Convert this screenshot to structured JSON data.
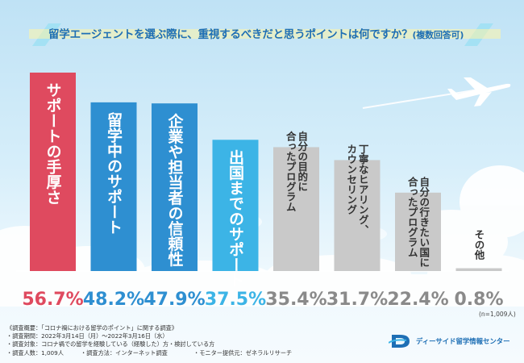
{
  "title": {
    "main": "留学エージェントを選ぶ際に、重視するべきだと思うポイントは何ですか？",
    "sub": "(複数回答可)"
  },
  "chart_data": {
    "type": "bar",
    "unit": "%",
    "ylim": [
      0,
      60
    ],
    "categories": [
      "サポートの手厚さ",
      "留学中のサポート",
      "企業や担当者の信頼性",
      "出国までのサポート",
      "自分の目的に合ったプログラム",
      "丁寧なヒアリング、カウンセリング",
      "自分の行きたい国に合ったプログラム",
      "その他"
    ],
    "label_lines": [
      [
        "サポートの手厚さ"
      ],
      [
        "留学中のサポート"
      ],
      [
        "企業や担当者の信頼性"
      ],
      [
        "出国までのサポート"
      ],
      [
        "自分の目的に",
        "合ったプログラム"
      ],
      [
        "丁寧なヒアリング、",
        "カウンセリング"
      ],
      [
        "自分の行きたい国に",
        "合ったプログラム"
      ],
      [
        "その他"
      ]
    ],
    "values": [
      56.7,
      48.2,
      47.9,
      37.5,
      35.4,
      31.7,
      22.4,
      0.8
    ],
    "value_labels": [
      "56.7%",
      "48.2%",
      "47.9%",
      "37.5%",
      "35.4%",
      "31.7%",
      "22.4%",
      "0.8%"
    ],
    "colors": [
      "#df4a5f",
      "#2e8fd1",
      "#2e8fd1",
      "#3cb4e6",
      "#c9c9c9",
      "#c9c9c9",
      "#c9c9c9",
      "#c9c9c9"
    ],
    "label_colors": [
      "#ffffff",
      "#ffffff",
      "#ffffff",
      "#ffffff",
      "#333333",
      "#333333",
      "#333333",
      "#333333"
    ],
    "value_colors": [
      "#df4a5f",
      "#2e8fd1",
      "#2e8fd1",
      "#3cb4e6",
      "#8a8a8a",
      "#8a8a8a",
      "#8a8a8a",
      "#8a8a8a"
    ]
  },
  "respondents_note": "(n=1,009人)",
  "survey_notes": {
    "overview": "《調査概要：「コロナ禍における留学のポイント」に関する調査》",
    "period": "・調査期間：2022年3月14日（月）〜2022年3月16日（水）",
    "target": "・調査対象：コロナ禍での留学を経験している（経験した）方・検討している方",
    "count": "・調査人数：1,009人",
    "method": "・調査方法：インターネット調査",
    "provider": "・モニター提供元：ゼネラルリサーチ"
  },
  "logo": {
    "text": "ディーサイド留学情報センター",
    "icon": "d-logo-icon"
  },
  "colors": {
    "accent_blue": "#1e6fb5",
    "highlight_red": "#df4a5f",
    "cloud": "#ffffff"
  }
}
